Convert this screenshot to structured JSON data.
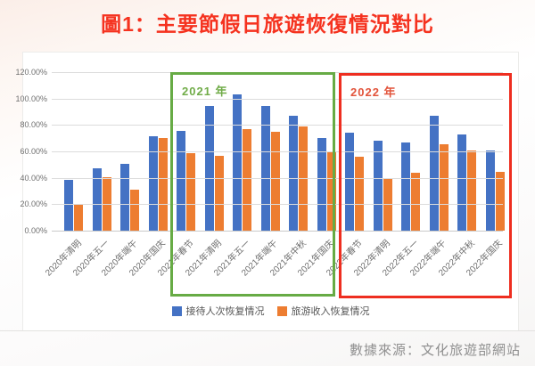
{
  "page": {
    "title": "圖1：主要節假日旅遊恢復情況對比",
    "source_note": "數據來源：文化旅遊部網站"
  },
  "colors": {
    "visits_bar": "#4472C4",
    "revenue_bar": "#ED7D31",
    "box_2021_border": "#67AB45",
    "box_2022_border": "#EE2E20",
    "title_red": "#F5321F"
  },
  "chart_data": {
    "type": "bar",
    "title": "主要節假日旅遊恢復情況對比",
    "xlabel": "",
    "ylabel": "",
    "ylim": [
      0,
      120
    ],
    "grid": true,
    "legend_position": "bottom",
    "y_ticks": [
      "120.00%",
      "100.00%",
      "80.00%",
      "60.00%",
      "40.00%",
      "20.00%",
      "0.00%"
    ],
    "categories": [
      "2020年清明",
      "2020年五一",
      "2020年端午",
      "2020年国庆",
      "2021年春节",
      "2021年清明",
      "2021年五一",
      "2021年端午",
      "2021年中秋",
      "2021年国庆",
      "2022年春节",
      "2022年清明",
      "2022年五一",
      "2022年端午",
      "2022年中秋",
      "2022年国庆"
    ],
    "series": [
      {
        "name": "接待人次恢复情况",
        "color_key": "visits_bar",
        "values": [
          38.4,
          47.5,
          50.9,
          71.5,
          75.3,
          94.5,
          103.2,
          94.2,
          87.2,
          70.1,
          73.9,
          68.0,
          66.8,
          86.8,
          72.6,
          60.7
        ]
      },
      {
        "name": "旅游收入恢复情况",
        "color_key": "revenue_bar",
        "values": [
          19.4,
          40.5,
          31.2,
          70.0,
          58.6,
          56.7,
          77.0,
          74.8,
          78.6,
          59.9,
          56.3,
          39.2,
          44.0,
          65.6,
          60.6,
          44.2
        ]
      }
    ],
    "annotations": [
      {
        "label": "2021 年",
        "covers": "2021年春节 至 2021年国庆",
        "color": "green"
      },
      {
        "label": "2022 年",
        "covers": "2022年春节 至 2022年国庆",
        "color": "red"
      }
    ]
  }
}
